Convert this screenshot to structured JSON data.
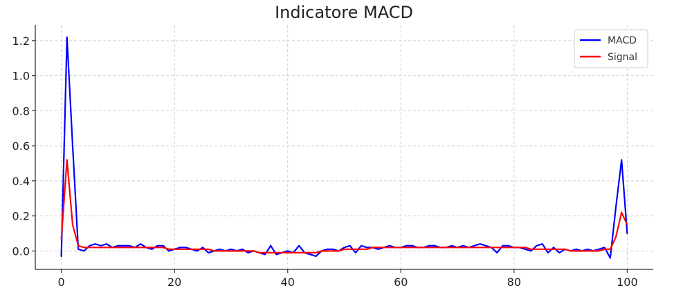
{
  "chart_data": {
    "type": "line",
    "title": "Indicatore MACD",
    "xlabel": "",
    "ylabel": "",
    "xlim": [
      -4.6,
      104.6
    ],
    "ylim": [
      -0.105,
      1.29
    ],
    "x_ticks": [
      0,
      20,
      40,
      60,
      80,
      100
    ],
    "y_ticks": [
      0.0,
      0.2,
      0.4,
      0.6,
      0.8,
      1.0,
      1.2
    ],
    "x_tick_labels": [
      "0",
      "20",
      "40",
      "60",
      "80",
      "100"
    ],
    "y_tick_labels": [
      "0.0",
      "0.2",
      "0.4",
      "0.6",
      "0.8",
      "1.0",
      "1.2"
    ],
    "grid": true,
    "legend_position": "top-right",
    "x": [
      0,
      1,
      2,
      3,
      4,
      5,
      6,
      7,
      8,
      9,
      10,
      11,
      12,
      13,
      14,
      15,
      16,
      17,
      18,
      19,
      20,
      21,
      22,
      23,
      24,
      25,
      26,
      27,
      28,
      29,
      30,
      31,
      32,
      33,
      34,
      35,
      36,
      37,
      38,
      39,
      40,
      41,
      42,
      43,
      44,
      45,
      46,
      47,
      48,
      49,
      50,
      51,
      52,
      53,
      54,
      55,
      56,
      57,
      58,
      59,
      60,
      61,
      62,
      63,
      64,
      65,
      66,
      67,
      68,
      69,
      70,
      71,
      72,
      73,
      74,
      75,
      76,
      77,
      78,
      79,
      80,
      81,
      82,
      83,
      84,
      85,
      86,
      87,
      88,
      89,
      90,
      91,
      92,
      93,
      94,
      95,
      96,
      97,
      98,
      99,
      100
    ],
    "series": [
      {
        "name": "MACD",
        "color": "#0000ff",
        "values": [
          -0.03,
          1.22,
          0.6,
          0.01,
          0.0,
          0.03,
          0.04,
          0.03,
          0.04,
          0.02,
          0.03,
          0.03,
          0.03,
          0.02,
          0.04,
          0.02,
          0.01,
          0.03,
          0.03,
          0.0,
          0.01,
          0.02,
          0.02,
          0.01,
          0.0,
          0.02,
          -0.01,
          0.0,
          0.01,
          0.0,
          0.01,
          0.0,
          0.01,
          -0.01,
          0.0,
          -0.01,
          -0.02,
          0.03,
          -0.02,
          -0.01,
          0.0,
          -0.01,
          0.03,
          -0.01,
          -0.02,
          -0.03,
          0.0,
          0.01,
          0.01,
          0.0,
          0.02,
          0.03,
          -0.01,
          0.03,
          0.02,
          0.02,
          0.01,
          0.02,
          0.03,
          0.02,
          0.02,
          0.03,
          0.03,
          0.02,
          0.02,
          0.03,
          0.03,
          0.02,
          0.02,
          0.03,
          0.02,
          0.03,
          0.02,
          0.03,
          0.04,
          0.03,
          0.02,
          -0.01,
          0.03,
          0.03,
          0.02,
          0.02,
          0.01,
          0.0,
          0.03,
          0.04,
          -0.01,
          0.02,
          -0.01,
          0.01,
          0.0,
          0.01,
          0.0,
          0.01,
          0.0,
          0.01,
          0.02,
          -0.04,
          0.25,
          0.52,
          0.1
        ]
      },
      {
        "name": "Signal",
        "color": "#ff0000",
        "values": [
          0.07,
          0.52,
          0.15,
          0.03,
          0.02,
          0.02,
          0.02,
          0.02,
          0.02,
          0.02,
          0.02,
          0.02,
          0.02,
          0.02,
          0.02,
          0.02,
          0.02,
          0.02,
          0.02,
          0.01,
          0.01,
          0.01,
          0.01,
          0.01,
          0.01,
          0.01,
          0.01,
          0.0,
          0.0,
          0.0,
          0.0,
          0.0,
          0.0,
          0.0,
          0.0,
          -0.01,
          -0.01,
          -0.01,
          -0.01,
          -0.01,
          -0.01,
          -0.01,
          -0.01,
          -0.01,
          -0.01,
          -0.01,
          0.0,
          0.0,
          0.0,
          0.0,
          0.01,
          0.01,
          0.01,
          0.01,
          0.01,
          0.02,
          0.02,
          0.02,
          0.02,
          0.02,
          0.02,
          0.02,
          0.02,
          0.02,
          0.02,
          0.02,
          0.02,
          0.02,
          0.02,
          0.02,
          0.02,
          0.02,
          0.02,
          0.02,
          0.02,
          0.02,
          0.02,
          0.02,
          0.02,
          0.02,
          0.02,
          0.02,
          0.02,
          0.01,
          0.01,
          0.01,
          0.01,
          0.01,
          0.01,
          0.01,
          0.0,
          0.0,
          0.0,
          0.0,
          0.0,
          0.0,
          0.01,
          0.01,
          0.08,
          0.22,
          0.15
        ]
      }
    ]
  }
}
